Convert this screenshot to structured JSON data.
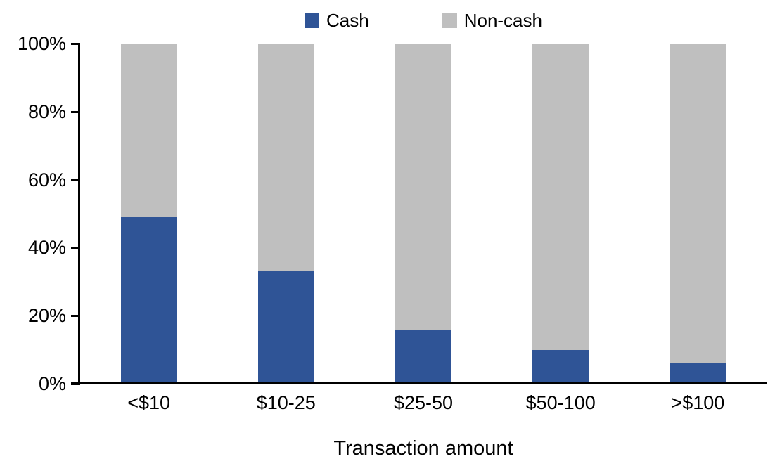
{
  "chart_data": {
    "type": "bar",
    "stacked": true,
    "percent_stacked": true,
    "title": "",
    "xlabel": "Transaction amount",
    "ylabel": "",
    "categories": [
      "<$10",
      "$10-25",
      "$25-50",
      "$50-100",
      ">$100"
    ],
    "series": [
      {
        "name": "Cash",
        "color": "#2F5496",
        "values": [
          49,
          33,
          16,
          10,
          6
        ]
      },
      {
        "name": "Non-cash",
        "color": "#BFBFBF",
        "values": [
          51,
          67,
          84,
          90,
          94
        ]
      }
    ],
    "ylim": [
      0,
      100
    ],
    "yticks": [
      {
        "label": "0%",
        "value": 0
      },
      {
        "label": "20%",
        "value": 20
      },
      {
        "label": "40%",
        "value": 40
      },
      {
        "label": "60%",
        "value": 60
      },
      {
        "label": "80%",
        "value": 80
      },
      {
        "label": "100%",
        "value": 100
      }
    ],
    "legend_position": "top",
    "grid": false,
    "axis_color": "#000000",
    "background_color": "#FFFFFF"
  }
}
